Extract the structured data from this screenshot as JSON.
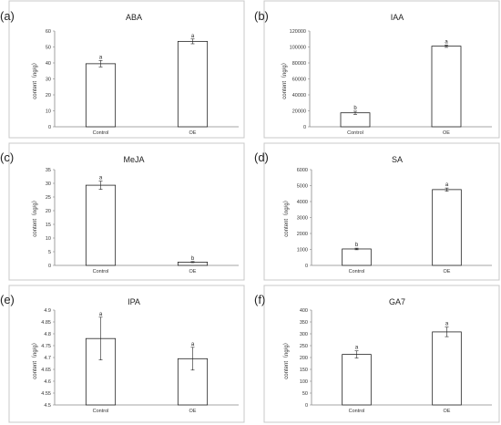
{
  "chart_data": [
    {
      "panel": "(a)",
      "type": "bar",
      "title": "ABA",
      "ylabel": "content（ng/g）",
      "categories": [
        "Control",
        "OE"
      ],
      "values": [
        39.5,
        53.5
      ],
      "errors": [
        2.0,
        1.5
      ],
      "letters": [
        "a",
        "a"
      ],
      "ylim": [
        0,
        60
      ],
      "yticks": [
        0,
        10,
        20,
        30,
        40,
        50,
        60
      ],
      "ytick_labels": [
        "0",
        "10",
        "20",
        "30",
        "40",
        "50",
        "60"
      ]
    },
    {
      "panel": "(b)",
      "type": "bar",
      "title": "IAA",
      "ylabel": "content（ng/g）",
      "categories": [
        "Control",
        "OE"
      ],
      "values": [
        17500,
        101000
      ],
      "errors": [
        2000,
        1500
      ],
      "letters": [
        "b",
        "a"
      ],
      "ylim": [
        0,
        120000
      ],
      "yticks": [
        0,
        20000,
        40000,
        60000,
        80000,
        100000,
        120000
      ],
      "ytick_labels": [
        "0",
        "20000",
        "40000",
        "60000",
        "80000",
        "100000",
        "120000"
      ]
    },
    {
      "panel": "(c)",
      "type": "bar",
      "title": "MeJA",
      "ylabel": "content（ng/g）",
      "categories": [
        "Control",
        "OE"
      ],
      "values": [
        29.3,
        1.2
      ],
      "errors": [
        1.5,
        0.2
      ],
      "letters": [
        "a",
        "b"
      ],
      "ylim": [
        0,
        35
      ],
      "yticks": [
        0,
        5,
        10,
        15,
        20,
        25,
        30,
        35
      ],
      "ytick_labels": [
        "0",
        "5",
        "10",
        "15",
        "20",
        "25",
        "30",
        "35"
      ]
    },
    {
      "panel": "(d)",
      "type": "bar",
      "title": "SA",
      "ylabel": "content（ng/g）",
      "categories": [
        "Control",
        "OE"
      ],
      "values": [
        1030,
        4750
      ],
      "errors": [
        50,
        100
      ],
      "letters": [
        "b",
        "a"
      ],
      "ylim": [
        0,
        6000
      ],
      "yticks": [
        0,
        1000,
        2000,
        3000,
        4000,
        5000,
        6000
      ],
      "ytick_labels": [
        "0",
        "1000",
        "2000",
        "3000",
        "4000",
        "5000",
        "6000"
      ]
    },
    {
      "panel": "(e)",
      "type": "bar",
      "title": "IPA",
      "ylabel": "content（ng/g）",
      "categories": [
        "Control",
        "OE"
      ],
      "values": [
        4.78,
        4.695
      ],
      "errors": [
        0.09,
        0.048
      ],
      "letters": [
        "a",
        "a"
      ],
      "ylim": [
        4.5,
        4.9
      ],
      "yticks": [
        4.5,
        4.55,
        4.6,
        4.65,
        4.7,
        4.75,
        4.8,
        4.85,
        4.9
      ],
      "ytick_labels": [
        "4.5",
        "4.55",
        "4.6",
        "4.65",
        "4.7",
        "4.75",
        "4.8",
        "4.85",
        "4.9"
      ]
    },
    {
      "panel": "(f)",
      "type": "bar",
      "title": "GA7",
      "ylabel": "content（ng/g）",
      "categories": [
        "Control",
        "OE"
      ],
      "values": [
        213,
        308
      ],
      "errors": [
        15,
        20
      ],
      "letters": [
        "a",
        "a"
      ],
      "ylim": [
        0,
        400
      ],
      "yticks": [
        0,
        50,
        100,
        150,
        200,
        250,
        300,
        350,
        400
      ],
      "ytick_labels": [
        "0",
        "50",
        "100",
        "150",
        "200",
        "250",
        "300",
        "350",
        "400"
      ]
    }
  ]
}
